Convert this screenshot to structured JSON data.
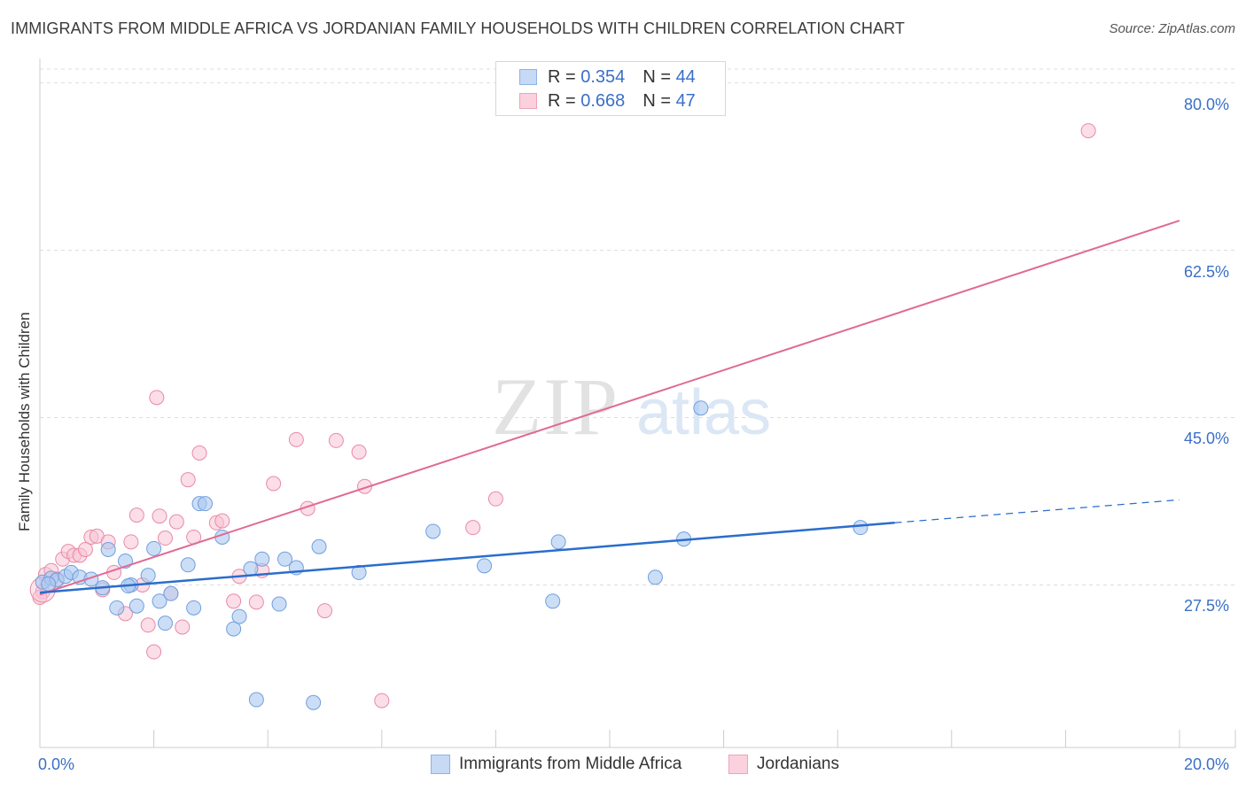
{
  "title": "IMMIGRANTS FROM MIDDLE AFRICA VS JORDANIAN FAMILY HOUSEHOLDS WITH CHILDREN CORRELATION CHART",
  "source": "Source: ZipAtlas.com",
  "watermark": {
    "zip": "ZIP",
    "atlas": "atlas"
  },
  "legend": {
    "r_label": "R =",
    "n_label": "N =",
    "series": [
      {
        "r": "0.354",
        "n": "44"
      },
      {
        "r": "0.668",
        "n": "47"
      }
    ]
  },
  "colors": {
    "blue_fill": "#aac8f0",
    "blue_stroke": "#6f9ee0",
    "blue_line": "#2a6dcc",
    "pink_fill": "#f8c3d3",
    "pink_stroke": "#e98aa8",
    "pink_line": "#e06a94",
    "tick_text": "#3a6fc8",
    "grid": "#dddddd"
  },
  "chart_data": {
    "type": "scatter",
    "title": "IMMIGRANTS FROM MIDDLE AFRICA VS JORDANIAN FAMILY HOUSEHOLDS WITH CHILDREN CORRELATION CHART",
    "xlabel": "",
    "ylabel": "Family Households with Children",
    "xlim": [
      0,
      20
    ],
    "ylim": [
      10.5,
      82
    ],
    "x_tick_labels": [
      "0.0%",
      "20.0%"
    ],
    "y_ticks": [
      27.5,
      45.0,
      62.5,
      80.0
    ],
    "y_tick_labels": [
      "27.5%",
      "45.0%",
      "62.5%",
      "80.0%"
    ],
    "legend_position": "top-center",
    "series": [
      {
        "name": "Immigrants from Middle Africa",
        "color": "#aac8f0",
        "trend": {
          "x0": 0,
          "y0": 26.7,
          "x1": 15.0,
          "y1": 34.0,
          "dash_to_x": 20.0,
          "dash_to_y": 36.4
        },
        "points": [
          [
            0.05,
            27.8
          ],
          [
            0.2,
            28.2
          ],
          [
            0.3,
            28.0
          ],
          [
            0.45,
            28.4
          ],
          [
            0.55,
            28.8
          ],
          [
            0.7,
            28.3
          ],
          [
            0.9,
            28.1
          ],
          [
            1.1,
            27.2
          ],
          [
            1.2,
            31.2
          ],
          [
            1.35,
            25.1
          ],
          [
            1.5,
            30.0
          ],
          [
            1.6,
            27.5
          ],
          [
            1.7,
            25.3
          ],
          [
            1.9,
            28.5
          ],
          [
            2.0,
            31.3
          ],
          [
            2.1,
            25.8
          ],
          [
            2.2,
            23.5
          ],
          [
            2.3,
            26.6
          ],
          [
            2.6,
            29.6
          ],
          [
            2.7,
            25.1
          ],
          [
            2.8,
            36.0
          ],
          [
            2.9,
            36.0
          ],
          [
            3.2,
            32.5
          ],
          [
            3.4,
            22.9
          ],
          [
            3.5,
            24.2
          ],
          [
            3.7,
            29.2
          ],
          [
            3.8,
            15.5
          ],
          [
            3.9,
            30.2
          ],
          [
            4.2,
            25.5
          ],
          [
            4.3,
            30.2
          ],
          [
            4.5,
            29.3
          ],
          [
            4.8,
            15.2
          ],
          [
            4.9,
            31.5
          ],
          [
            5.6,
            28.8
          ],
          [
            6.9,
            33.1
          ],
          [
            7.8,
            29.5
          ],
          [
            9.0,
            25.8
          ],
          [
            9.1,
            32.0
          ],
          [
            10.8,
            28.3
          ],
          [
            11.3,
            32.3
          ],
          [
            11.6,
            46.0
          ],
          [
            14.4,
            33.5
          ],
          [
            0.15,
            27.6
          ],
          [
            1.55,
            27.4
          ]
        ]
      },
      {
        "name": "Jordanians",
        "color": "#f8c3d3",
        "trend": {
          "x0": 0,
          "y0": 26.5,
          "x1": 20.0,
          "y1": 65.6
        },
        "points": [
          [
            0.05,
            26.8
          ],
          [
            0.1,
            28.6
          ],
          [
            0.2,
            29.0
          ],
          [
            0.3,
            28.1
          ],
          [
            0.4,
            30.2
          ],
          [
            0.5,
            31.0
          ],
          [
            0.6,
            30.6
          ],
          [
            0.7,
            30.6
          ],
          [
            0.8,
            31.2
          ],
          [
            0.9,
            32.5
          ],
          [
            1.0,
            32.6
          ],
          [
            1.1,
            27.0
          ],
          [
            1.2,
            32.0
          ],
          [
            1.3,
            28.8
          ],
          [
            1.5,
            24.5
          ],
          [
            1.6,
            32.0
          ],
          [
            1.7,
            34.8
          ],
          [
            1.8,
            27.5
          ],
          [
            1.9,
            23.3
          ],
          [
            2.0,
            20.5
          ],
          [
            2.05,
            47.1
          ],
          [
            2.1,
            34.7
          ],
          [
            2.2,
            32.4
          ],
          [
            2.3,
            26.6
          ],
          [
            2.4,
            34.1
          ],
          [
            2.5,
            23.1
          ],
          [
            2.6,
            38.5
          ],
          [
            2.7,
            32.5
          ],
          [
            2.8,
            41.3
          ],
          [
            3.1,
            34.0
          ],
          [
            3.2,
            34.2
          ],
          [
            3.4,
            25.8
          ],
          [
            3.5,
            28.4
          ],
          [
            3.8,
            25.7
          ],
          [
            3.9,
            29.0
          ],
          [
            4.1,
            38.1
          ],
          [
            4.5,
            42.7
          ],
          [
            4.7,
            35.5
          ],
          [
            5.0,
            24.8
          ],
          [
            5.2,
            42.6
          ],
          [
            5.6,
            41.4
          ],
          [
            5.7,
            37.8
          ],
          [
            6.0,
            15.4
          ],
          [
            7.6,
            33.5
          ],
          [
            8.0,
            36.5
          ],
          [
            18.4,
            75.0
          ],
          [
            0.0,
            26.2
          ]
        ]
      }
    ]
  },
  "bottom_legend": {
    "items": [
      "Immigrants from Middle Africa",
      "Jordanians"
    ]
  }
}
